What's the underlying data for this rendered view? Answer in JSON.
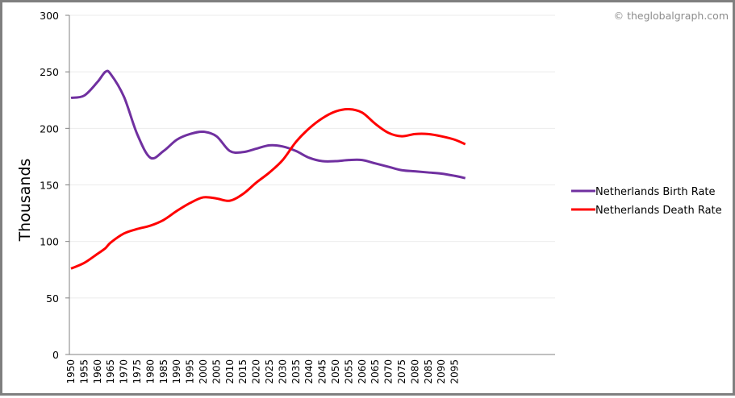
{
  "watermark": "© theglobalgraph.com",
  "chart_data": {
    "type": "line",
    "title": "",
    "xlabel": "",
    "ylabel": "Thousands",
    "ylim": [
      0,
      300
    ],
    "yticks": [
      0,
      50,
      100,
      150,
      200,
      250,
      300
    ],
    "xticks": [
      1950,
      1955,
      1960,
      1965,
      1970,
      1975,
      1980,
      1985,
      1990,
      1995,
      2000,
      2005,
      2010,
      2015,
      2020,
      2025,
      2030,
      2035,
      2040,
      2045,
      2050,
      2055,
      2060,
      2065,
      2070,
      2075,
      2080,
      2085,
      2090,
      2095
    ],
    "grid": true,
    "legend_position": "right",
    "x": [
      1950,
      1955,
      1960,
      1963,
      1965,
      1970,
      1975,
      1980,
      1985,
      1990,
      1995,
      2000,
      2005,
      2010,
      2015,
      2020,
      2025,
      2030,
      2035,
      2040,
      2045,
      2050,
      2055,
      2060,
      2065,
      2070,
      2075,
      2080,
      2085,
      2090,
      2095,
      2099
    ],
    "series": [
      {
        "name": "Netherlands Birth Rate",
        "color": "#7030a0",
        "values": [
          227,
          229,
          241,
          250,
          248,
          228,
          195,
          174,
          180,
          190,
          195,
          197,
          193,
          180,
          179,
          182,
          185,
          184,
          180,
          174,
          171,
          171,
          172,
          172,
          169,
          166,
          163,
          162,
          161,
          160,
          158,
          156
        ]
      },
      {
        "name": "Netherlands Death Rate",
        "color": "#ff0000",
        "values": [
          76,
          81,
          89,
          94,
          99,
          107,
          111,
          114,
          119,
          127,
          134,
          139,
          138,
          136,
          142,
          152,
          161,
          172,
          188,
          200,
          209,
          215,
          217,
          214,
          204,
          196,
          193,
          195,
          195,
          193,
          190,
          186
        ]
      }
    ]
  }
}
